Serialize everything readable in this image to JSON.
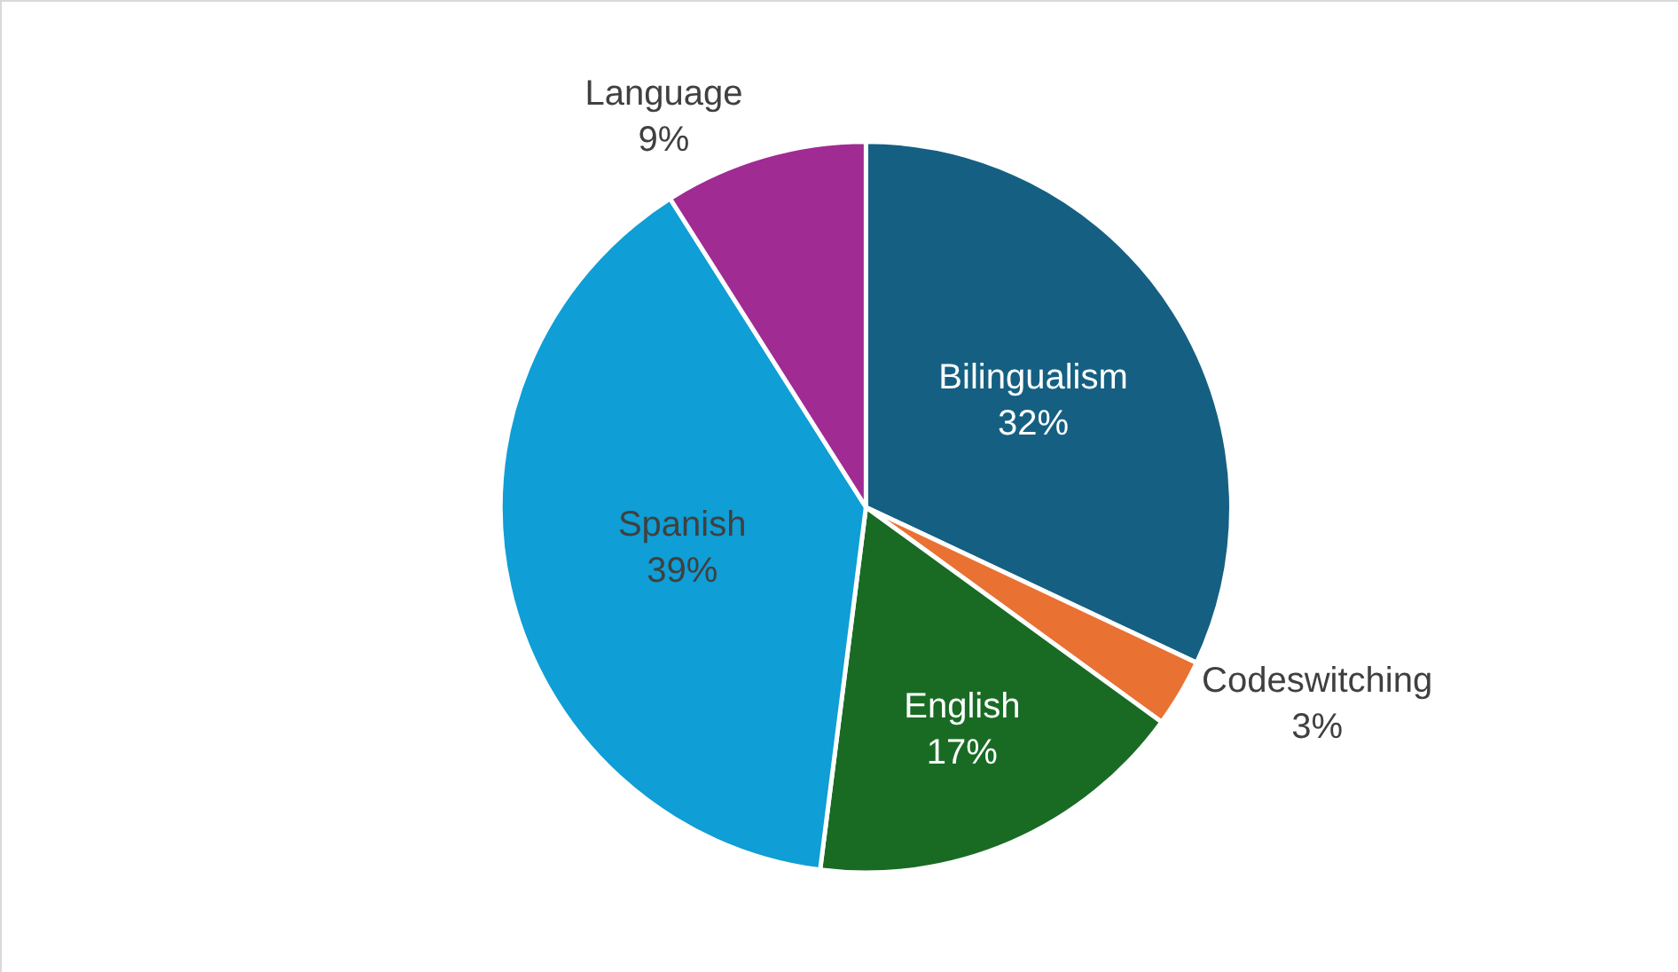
{
  "chart_data": {
    "type": "pie",
    "categories": [
      "Bilingualism",
      "Codeswitching",
      "English",
      "Spanish",
      "Language"
    ],
    "values": [
      32,
      3,
      17,
      39,
      9
    ],
    "value_labels": [
      "32%",
      "3%",
      "17%",
      "39%",
      "9%"
    ],
    "colors": [
      "#156082",
      "#e97132",
      "#196b24",
      "#0f9ed5",
      "#a02b93"
    ],
    "legend": false
  }
}
